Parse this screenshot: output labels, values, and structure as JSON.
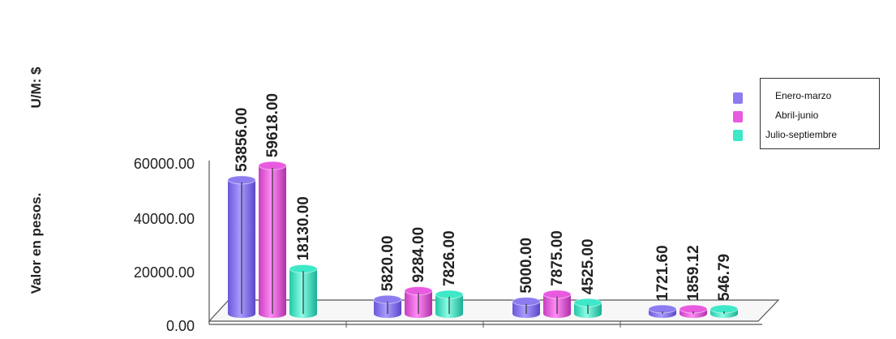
{
  "chart_data": {
    "type": "bar",
    "ylabel": "Valor en pesos.",
    "unit_label": "U/M: $",
    "ylim": [
      0,
      60000
    ],
    "yticks": [
      "0.00",
      "20000.00",
      "40000.00",
      "60000.00"
    ],
    "grid": false,
    "legend_position": "top-right",
    "categories": [
      "",
      "",
      "",
      ""
    ],
    "series": [
      {
        "name": "Enero-marzo",
        "color": "#8c7cf0",
        "values": [
          53856.0,
          5820.0,
          5000.0,
          1721.6
        ],
        "labels": [
          "53856.00",
          "5820.00",
          "5000.00",
          "1721.60"
        ]
      },
      {
        "name": "Abril-junio",
        "color": "#e85ae0",
        "values": [
          59618.0,
          9284.0,
          7875.0,
          1859.12
        ],
        "labels": [
          "59618.00",
          "9284.00",
          "7875.00",
          "1859.12"
        ]
      },
      {
        "name": "Julio-septiembre",
        "color": "#3ee8c8",
        "values": [
          18130.0,
          7826.0,
          4525.0,
          546.79
        ],
        "labels": [
          "18130.00",
          "7826.00",
          "4525.00",
          "546.79"
        ]
      }
    ]
  }
}
